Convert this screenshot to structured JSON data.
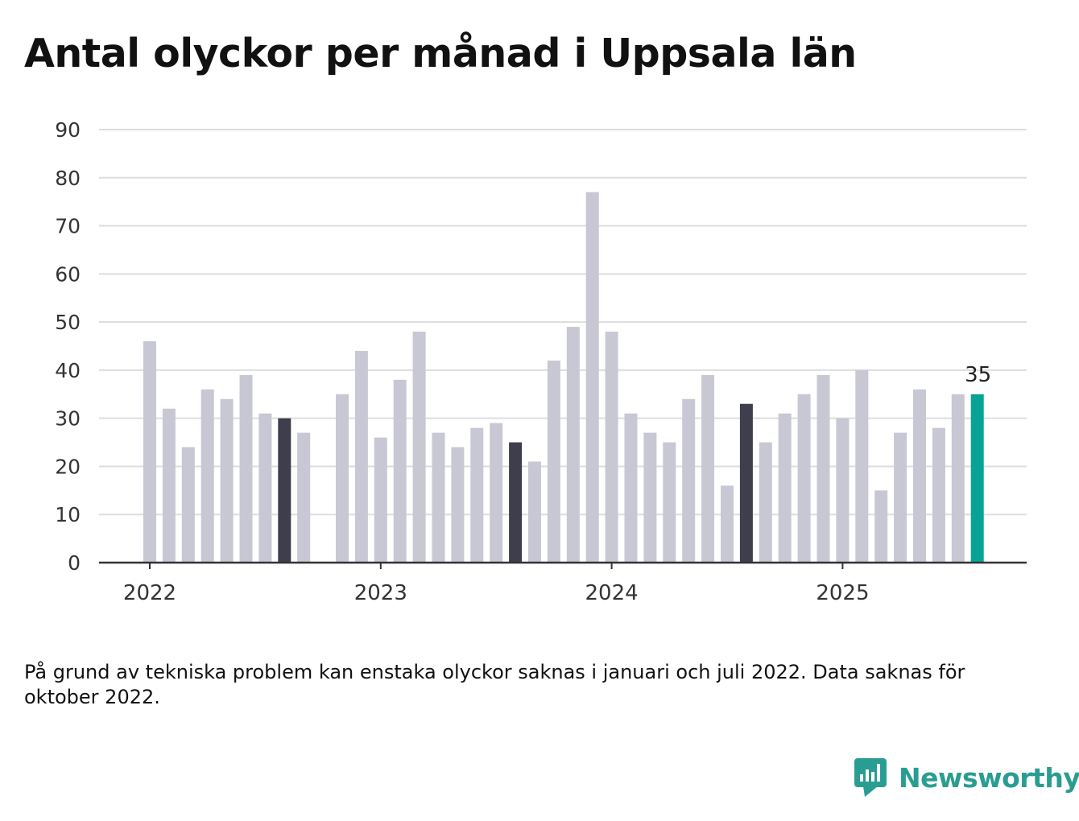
{
  "title": "Antal olyckor per månad i Uppsala län",
  "footnote": "På grund av tekniska problem kan enstaka olyckor saknas i januari och juli 2022. Data saknas för oktober 2022.",
  "brand": {
    "name": "Newsworthy",
    "icon": "newsworthy-bar-chart-bubble-icon",
    "color": "#2a9d92"
  },
  "colors": {
    "bar": "#c8c7d4",
    "highlight": "#3f3e4c",
    "latest": "#06a396",
    "grid": "#dddddd",
    "axis": "#333333",
    "text": "#333333"
  },
  "chart_data": {
    "type": "bar",
    "x_ticks": [
      {
        "label": "2022",
        "month_index": 0
      },
      {
        "label": "2023",
        "month_index": 12
      },
      {
        "label": "2024",
        "month_index": 24
      },
      {
        "label": "2025",
        "month_index": 36
      }
    ],
    "ylim": [
      0,
      90
    ],
    "yticks": [
      0,
      10,
      20,
      30,
      40,
      50,
      60,
      70,
      80,
      90
    ],
    "grid": true,
    "months": [
      "2022-01",
      "2022-02",
      "2022-03",
      "2022-04",
      "2022-05",
      "2022-06",
      "2022-07",
      "2022-08",
      "2022-09",
      "2022-10",
      "2022-11",
      "2022-12",
      "2023-01",
      "2023-02",
      "2023-03",
      "2023-04",
      "2023-05",
      "2023-06",
      "2023-07",
      "2023-08",
      "2023-09",
      "2023-10",
      "2023-11",
      "2023-12",
      "2024-01",
      "2024-02",
      "2024-03",
      "2024-04",
      "2024-05",
      "2024-06",
      "2024-07",
      "2024-08",
      "2024-09",
      "2024-10",
      "2024-11",
      "2024-12",
      "2025-01",
      "2025-02",
      "2025-03",
      "2025-04",
      "2025-05",
      "2025-06",
      "2025-07",
      "2025-08"
    ],
    "values": [
      46,
      32,
      24,
      36,
      34,
      39,
      31,
      30,
      27,
      null,
      35,
      44,
      26,
      38,
      48,
      27,
      24,
      28,
      29,
      25,
      21,
      42,
      49,
      77,
      48,
      31,
      27,
      25,
      34,
      39,
      16,
      33,
      25,
      31,
      35,
      39,
      30,
      40,
      15,
      27,
      36,
      28,
      35,
      35
    ],
    "highlighted_months": [
      "2022-08",
      "2023-08",
      "2024-08"
    ],
    "latest_month": "2025-08",
    "latest_label": "35"
  }
}
